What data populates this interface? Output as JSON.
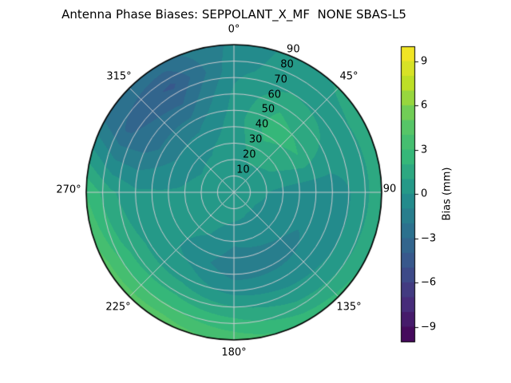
{
  "title": "Antenna Phase Biases: SEPPOLANT_X_MF  NONE SBAS-L5",
  "chart_data": {
    "type": "heatmap",
    "projection": "polar",
    "title": "Antenna Phase Biases: SEPPOLANT_X_MF  NONE SBAS-L5",
    "azimuth_tick_labels": [
      "0°",
      "45°",
      "90",
      "135°",
      "180°",
      "225°",
      "270°",
      "315°"
    ],
    "radius_tick_labels": [
      "10",
      "20",
      "30",
      "40",
      "50",
      "60",
      "70",
      "80",
      "90"
    ],
    "radius_range": [
      0,
      90
    ],
    "azimuth_grid_step_deg": 45,
    "radius_grid_step": 10,
    "colormap": "viridis",
    "clim": [
      -10,
      10
    ],
    "band_step_mm": 1,
    "azimuth_deg": [
      0,
      30,
      60,
      90,
      120,
      150,
      180,
      210,
      240,
      270,
      300,
      330
    ],
    "zenith_deg": [
      0,
      15,
      30,
      45,
      60,
      75,
      90
    ],
    "bias_mm": [
      [
        0.5,
        0.5,
        0.5,
        0.4,
        0.2,
        -0.3,
        -0.8
      ],
      [
        0.5,
        0.8,
        1.6,
        2.6,
        1.8,
        0.6,
        0.6
      ],
      [
        0.5,
        0.6,
        1.2,
        2.0,
        1.0,
        0.6,
        1.6
      ],
      [
        0.5,
        0.2,
        -0.3,
        -0.8,
        -0.6,
        0.2,
        1.8
      ],
      [
        0.5,
        0.0,
        -0.5,
        -1.0,
        -0.8,
        0.4,
        2.0
      ],
      [
        0.5,
        0.0,
        -0.6,
        -1.5,
        -0.6,
        0.8,
        2.6
      ],
      [
        0.5,
        0.2,
        -0.8,
        -1.8,
        -0.4,
        1.8,
        3.6
      ],
      [
        0.5,
        0.3,
        0.0,
        -0.5,
        0.6,
        2.4,
        4.6
      ],
      [
        0.5,
        0.3,
        0.3,
        0.4,
        0.8,
        2.2,
        4.4
      ],
      [
        0.5,
        0.3,
        0.1,
        0.1,
        0.2,
        1.2,
        3.0
      ],
      [
        0.5,
        0.2,
        -0.2,
        -1.4,
        -2.6,
        -3.1,
        -2.2
      ],
      [
        0.5,
        0.3,
        -0.1,
        -1.2,
        -2.8,
        -4.2,
        -2.4
      ]
    ],
    "colorbar": {
      "label": "Bias (mm)",
      "ticks": [
        9,
        6,
        3,
        0,
        -3,
        -6,
        -9
      ],
      "tick_labels": [
        "9",
        "6",
        "3",
        "0",
        "−3",
        "−6",
        "−9"
      ]
    },
    "viridis_stops": [
      "#440154",
      "#472c7a",
      "#3b528b",
      "#2c718e",
      "#21918c",
      "#35b779",
      "#5ec962",
      "#bddf26",
      "#fde725"
    ],
    "grid_color": "#cbcbd0",
    "outline_color": "#000000",
    "background": "#ffffff"
  }
}
